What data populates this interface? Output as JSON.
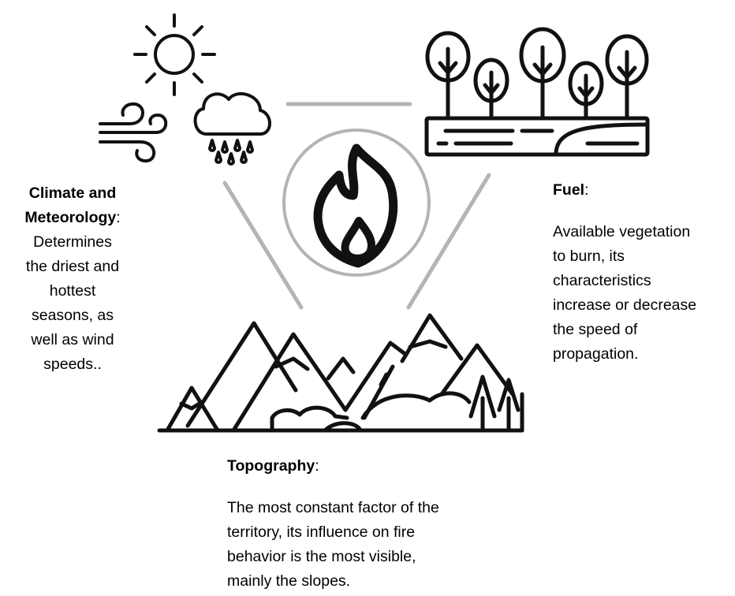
{
  "factors": {
    "climate": {
      "title_line1": "Climate and",
      "title_line2": "Meteorology",
      "colon": ":",
      "description_lines": [
        "Determines",
        "the driest and",
        "hottest",
        "seasons, as",
        "well as wind",
        "speeds.."
      ]
    },
    "fuel": {
      "title": "Fuel",
      "colon": ":",
      "description_lines": [
        "Available vegetation",
        "to burn, its",
        "characteristics",
        "increase or decrease",
        "the speed of",
        "propagation."
      ]
    },
    "topography": {
      "title": "Topography",
      "colon": ":",
      "description_lines": [
        "The most constant factor of the",
        "territory, its influence on fire",
        "behavior is the most visible,",
        "mainly the slopes."
      ]
    }
  },
  "icons": {
    "center": "fire-icon",
    "top_left": [
      "sun-icon",
      "wind-icon",
      "rain-cloud-icon"
    ],
    "top_right": "forest-icon",
    "bottom": "mountains-icon"
  },
  "colors": {
    "icon_stroke": "#111111",
    "connector": "#b4b4b4"
  }
}
